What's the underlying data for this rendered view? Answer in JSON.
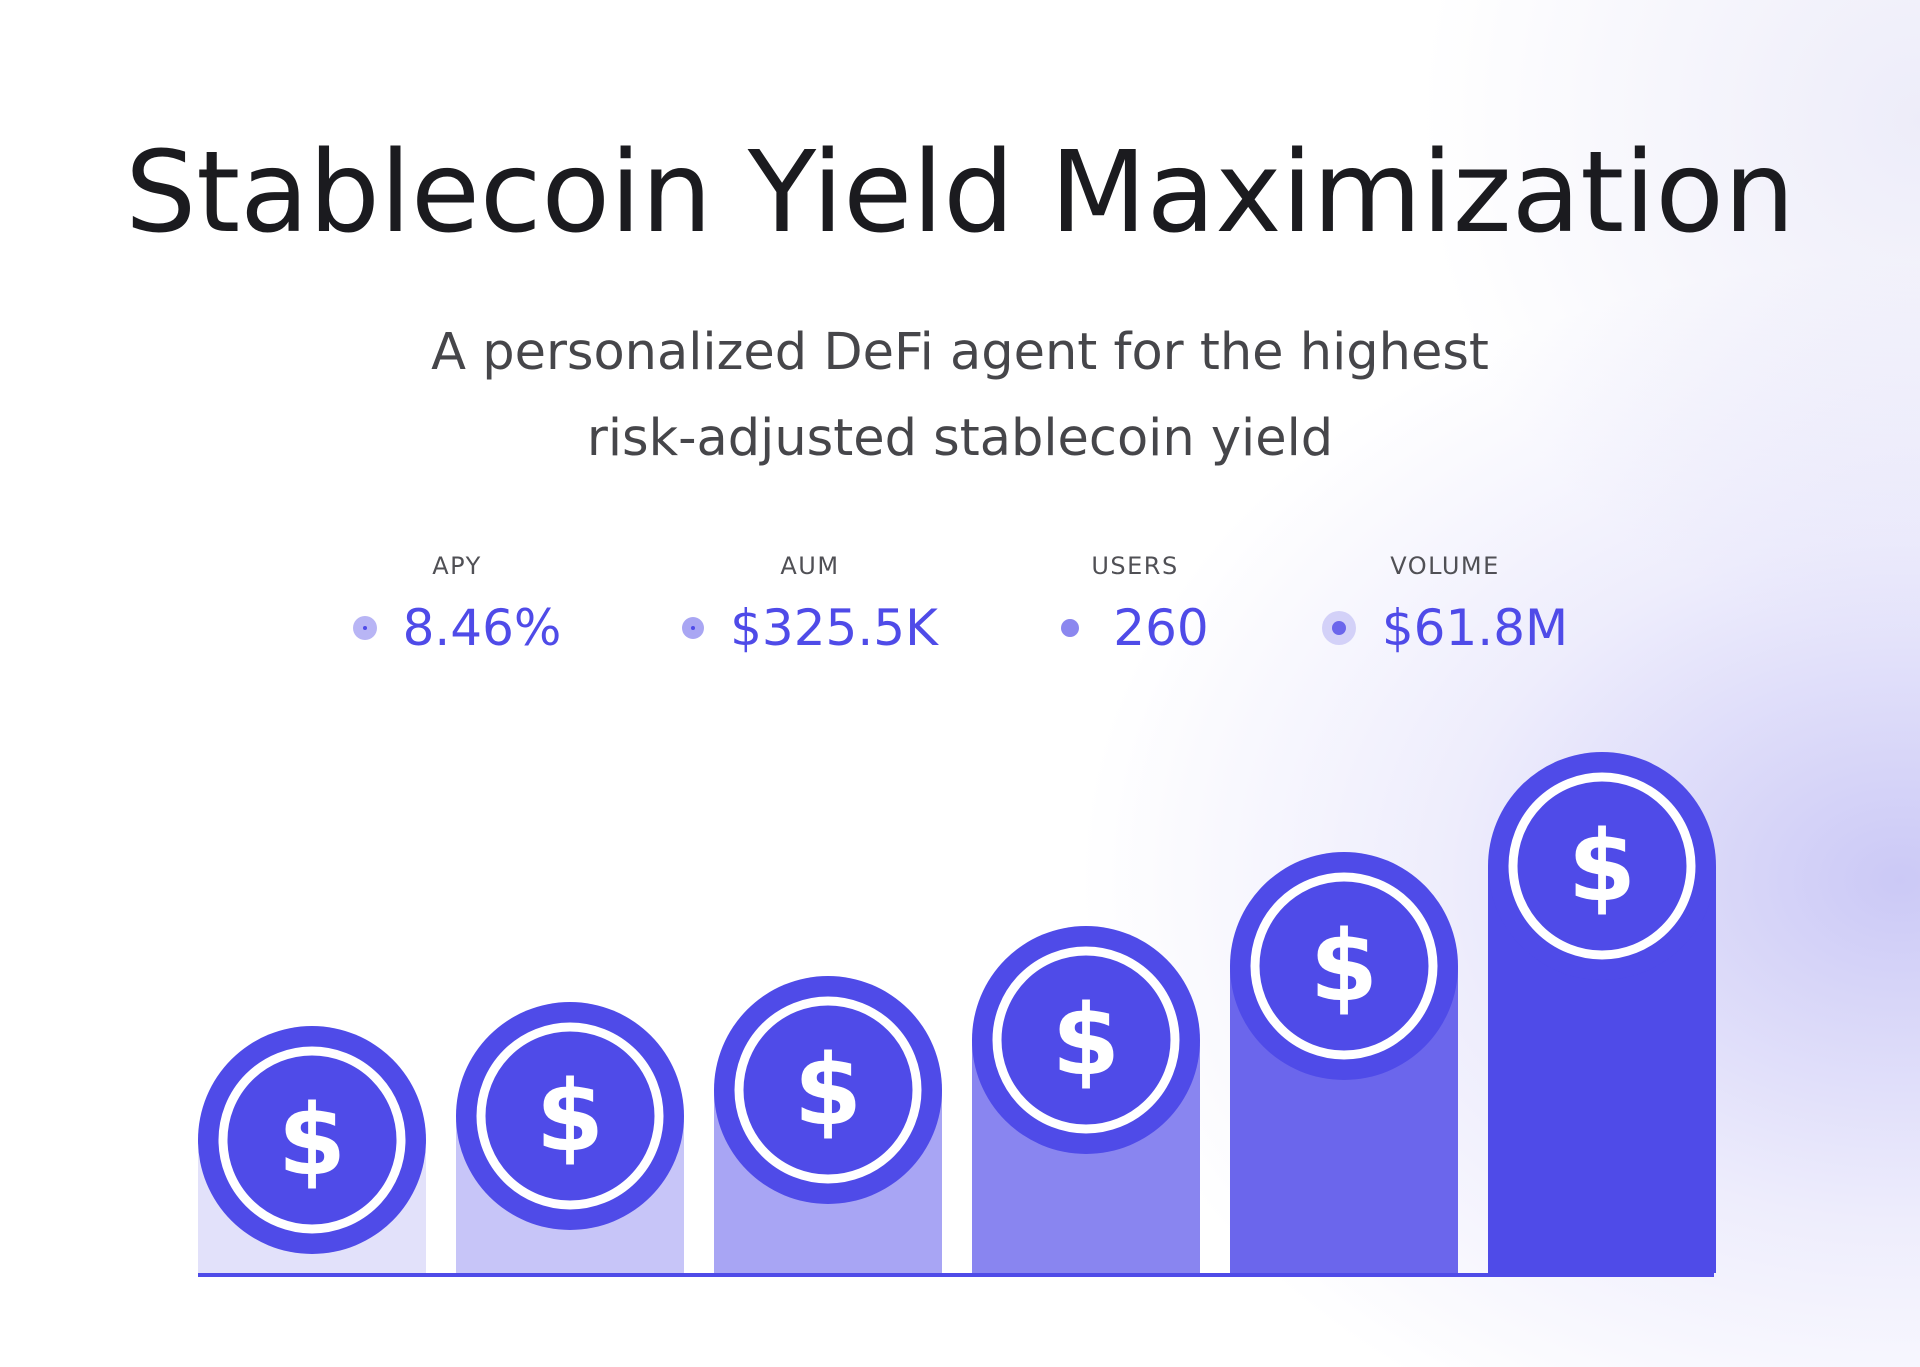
{
  "title": "Stablecoin Yield Maximization",
  "subtitle": {
    "line1": "A personalized DeFi agent for the highest",
    "line2": "risk-adjusted stablecoin yield"
  },
  "stats": [
    {
      "label": "APY",
      "value": "8.46%"
    },
    {
      "label": "AUM",
      "value": "$325.5K"
    },
    {
      "label": "USERS",
      "value": "260"
    },
    {
      "label": "VOLUME",
      "value": "$61.8M"
    }
  ],
  "coin_symbol": "$",
  "colors": {
    "accent": "#4f4be8",
    "title": "#1b1b1f",
    "subtitle": "#46464a",
    "bar_shades": [
      "#e2e1fa",
      "#c7c5f8",
      "#a8a5f4",
      "#8985f0",
      "#6b66ec",
      "#4f4be8"
    ]
  },
  "steps": [
    {
      "level": 1
    },
    {
      "level": 2
    },
    {
      "level": 3
    },
    {
      "level": 4
    },
    {
      "level": 5
    },
    {
      "level": 6
    }
  ]
}
